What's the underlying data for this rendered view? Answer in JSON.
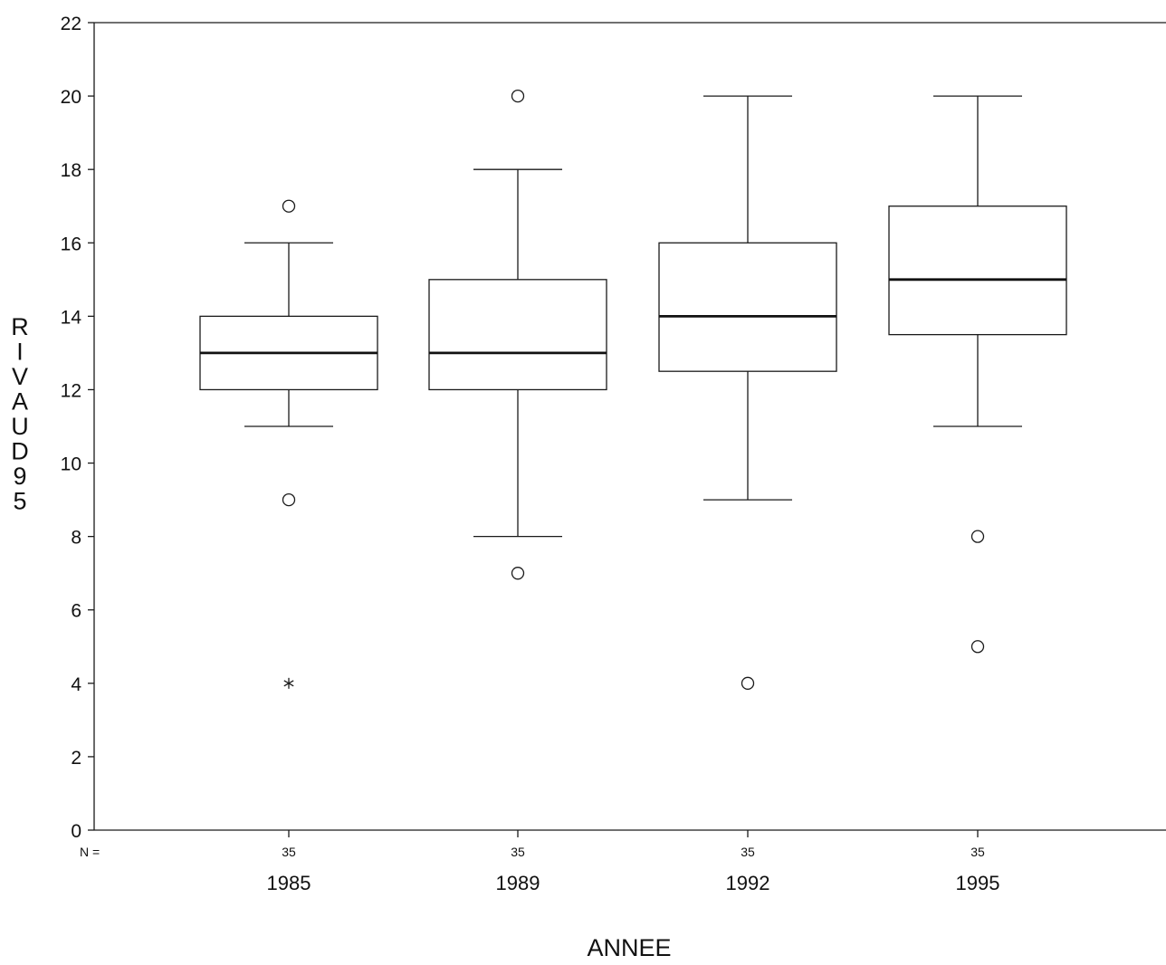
{
  "chart_data": {
    "type": "boxplot",
    "xlabel": "ANNEE",
    "ylabel": "RIVAUD95",
    "ylim": [
      0,
      22
    ],
    "yticks": [
      0,
      2,
      4,
      6,
      8,
      10,
      12,
      14,
      16,
      18,
      20,
      22
    ],
    "n_prefix": "N =",
    "categories": [
      "1985",
      "1989",
      "1992",
      "1995"
    ],
    "boxes": [
      {
        "category": "1985",
        "n": "35",
        "whisker_low": 11,
        "q1": 12,
        "median": 13,
        "q3": 14,
        "whisker_high": 16,
        "outliers": [
          17,
          9
        ],
        "extremes": [
          4
        ]
      },
      {
        "category": "1989",
        "n": "35",
        "whisker_low": 8,
        "q1": 12,
        "median": 13,
        "q3": 15,
        "whisker_high": 18,
        "outliers": [
          20,
          7
        ],
        "extremes": []
      },
      {
        "category": "1992",
        "n": "35",
        "whisker_low": 9,
        "q1": 12.5,
        "median": 14,
        "q3": 16,
        "whisker_high": 20,
        "outliers": [
          4
        ],
        "extremes": []
      },
      {
        "category": "1995",
        "n": "35",
        "whisker_low": 11,
        "q1": 13.5,
        "median": 15,
        "q3": 17,
        "whisker_high": 20,
        "outliers": [
          8,
          5
        ],
        "extremes": []
      }
    ],
    "grid": false,
    "legend": "none"
  }
}
